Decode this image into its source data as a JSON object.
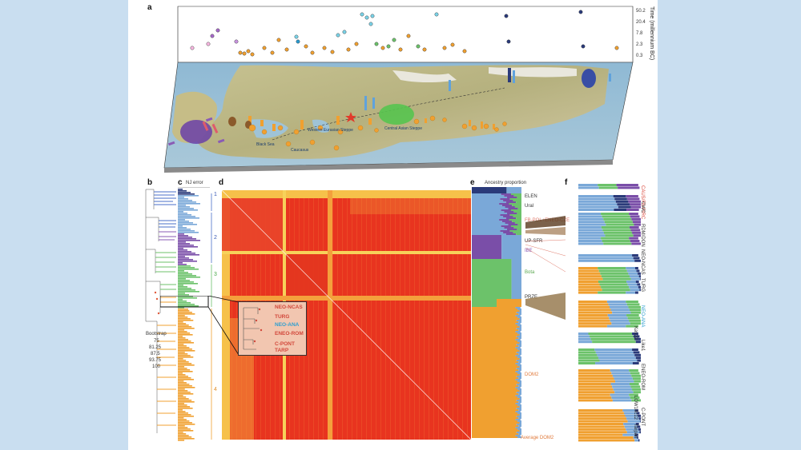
{
  "panels": {
    "a": "a",
    "b": "b",
    "c": "c",
    "d": "d",
    "e": "e",
    "f": "f"
  },
  "panel_a": {
    "axis_title": "Time (millennium BC)",
    "ticks": [
      "50.2",
      "20.4",
      "7.8",
      "2.3",
      "0.3"
    ],
    "map_labels": [
      "Western Eurasian Steppe",
      "Central Asian Steppe",
      "Caucasus",
      "Black Sea"
    ]
  },
  "panel_c": {
    "title": "NJ error"
  },
  "panel_b": {
    "bootstrap_title": "Bootstrap",
    "bootstrap_values": [
      "75",
      "81.25",
      "87.5",
      "93.75",
      "100"
    ]
  },
  "clusters": [
    "1",
    "2",
    "3",
    "4"
  ],
  "inset_labels": [
    {
      "text": "NEO-NCAS",
      "color": "#d2483b"
    },
    {
      "text": "TURG",
      "color": "#d2483b"
    },
    {
      "text": "NEO-ANA",
      "color": "#2f9fd0"
    },
    {
      "text": "ENEO-ROM",
      "color": "#d2483b"
    },
    {
      "text": "C-PONT",
      "color": "#d2483b"
    },
    {
      "text": "TARP",
      "color": "#d2483b"
    }
  ],
  "panel_e": {
    "title": "Ancestry proportion"
  },
  "ancestry_labels": [
    {
      "text": "ELEN",
      "color": "#333333"
    },
    {
      "text": "Ural",
      "color": "#333333"
    },
    {
      "text": "FB-POL+ENEO-CZE",
      "color": "#e07a6b"
    },
    {
      "text": "UP-SFR",
      "color": "#333333"
    },
    {
      "text": "IBE",
      "color": "#8a5bb5"
    },
    {
      "text": "Bota",
      "color": "#5aa84f"
    },
    {
      "text": "PRZE",
      "color": "#333333"
    },
    {
      "text": "DOM2",
      "color": "#e07a3b"
    }
  ],
  "panel_f_labels": [
    {
      "text": "CAUS/FB-PIRC",
      "color": "#d9483b"
    },
    {
      "text": "CWC",
      "color": "#333333"
    },
    {
      "text": "RDM/DON",
      "color": "#333333"
    },
    {
      "text": "NEO-NCAS",
      "color": "#333333"
    },
    {
      "text": "TURG",
      "color": "#333333"
    },
    {
      "text": "NEO-ANA",
      "color": "#2f9fd0"
    },
    {
      "text": "Kav22",
      "color": "#333333"
    },
    {
      "text": "Like1",
      "color": "#333333"
    },
    {
      "text": "ENEO-ROM",
      "color": "#333333"
    },
    {
      "text": "LOW18c12",
      "color": "#333333"
    },
    {
      "text": "C-PONT",
      "color": "#333333"
    },
    {
      "text": "Tarpan",
      "color": "#333333"
    },
    {
      "text": "Average DOM2",
      "color": "#e07a3b"
    }
  ],
  "colors": {
    "page_bg": "#c9def0",
    "orange": "#f0a030",
    "green": "#6cc26a",
    "light_blue": "#7aa8d8",
    "purple": "#7a4ea8",
    "navy": "#2a3a7a",
    "heat_low": "#f7d25a",
    "heat_high": "#e8341f"
  }
}
